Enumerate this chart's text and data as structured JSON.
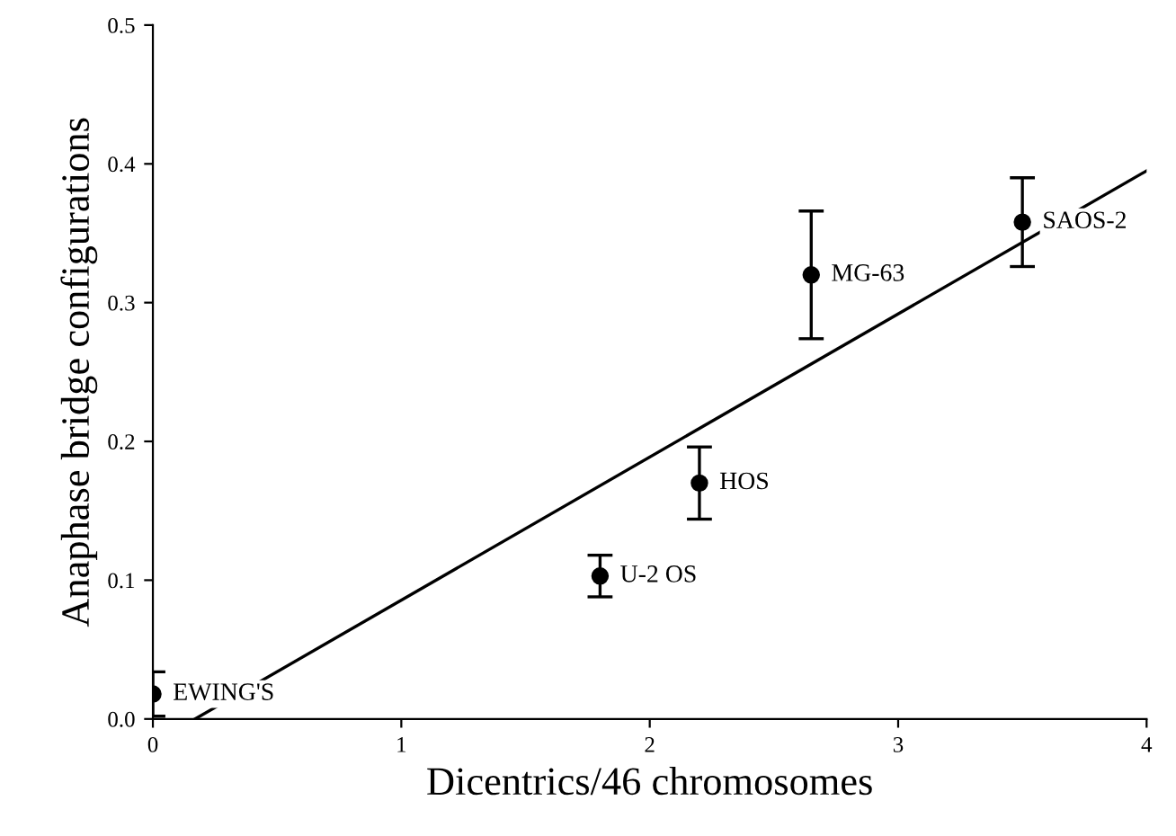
{
  "chart_data": {
    "type": "scatter",
    "xlabel": "Dicentrics/46 chromosomes",
    "ylabel": "Anaphase bridge configurations",
    "xlim": [
      0,
      4
    ],
    "xticks": [
      0,
      1,
      2,
      3,
      4
    ],
    "ylim": [
      0,
      0.5
    ],
    "yticks": [
      {
        "value": 0,
        "label": "0.0"
      },
      {
        "value": 0.1,
        "label": "0.1"
      },
      {
        "value": 0.2,
        "label": "0.2"
      },
      {
        "value": 0.3,
        "label": "0.3"
      },
      {
        "value": 0.4,
        "label": "0.4"
      },
      {
        "value": 0.5,
        "label": "0.5"
      }
    ],
    "grid": false,
    "legend": false,
    "series": [
      {
        "color": "#000000",
        "marker": "circle",
        "x": [
          0,
          1.8,
          2.2,
          2.65,
          3.5
        ],
        "values": [
          0.018,
          0.103,
          0.17,
          0.32,
          0.358
        ],
        "errors": [
          0.016,
          0.015,
          0.026,
          0.046,
          0.032
        ]
      },
      {
        "type": "line",
        "color": "#000000",
        "marker": "none",
        "line_style": "solid",
        "x": [
          0.17,
          4
        ],
        "values": [
          0,
          0.395
        ]
      }
    ],
    "annotations": [
      {
        "text": "EWING'S",
        "x": 0,
        "y": 0.018
      },
      {
        "text": "U-2 OS",
        "x": 1.8,
        "y": 0.103
      },
      {
        "text": "HOS",
        "x": 2.2,
        "y": 0.17
      },
      {
        "text": "MG-63",
        "x": 2.65,
        "y": 0.32
      },
      {
        "text": "SAOS-2",
        "x": 3.5,
        "y": 0.358
      }
    ]
  }
}
